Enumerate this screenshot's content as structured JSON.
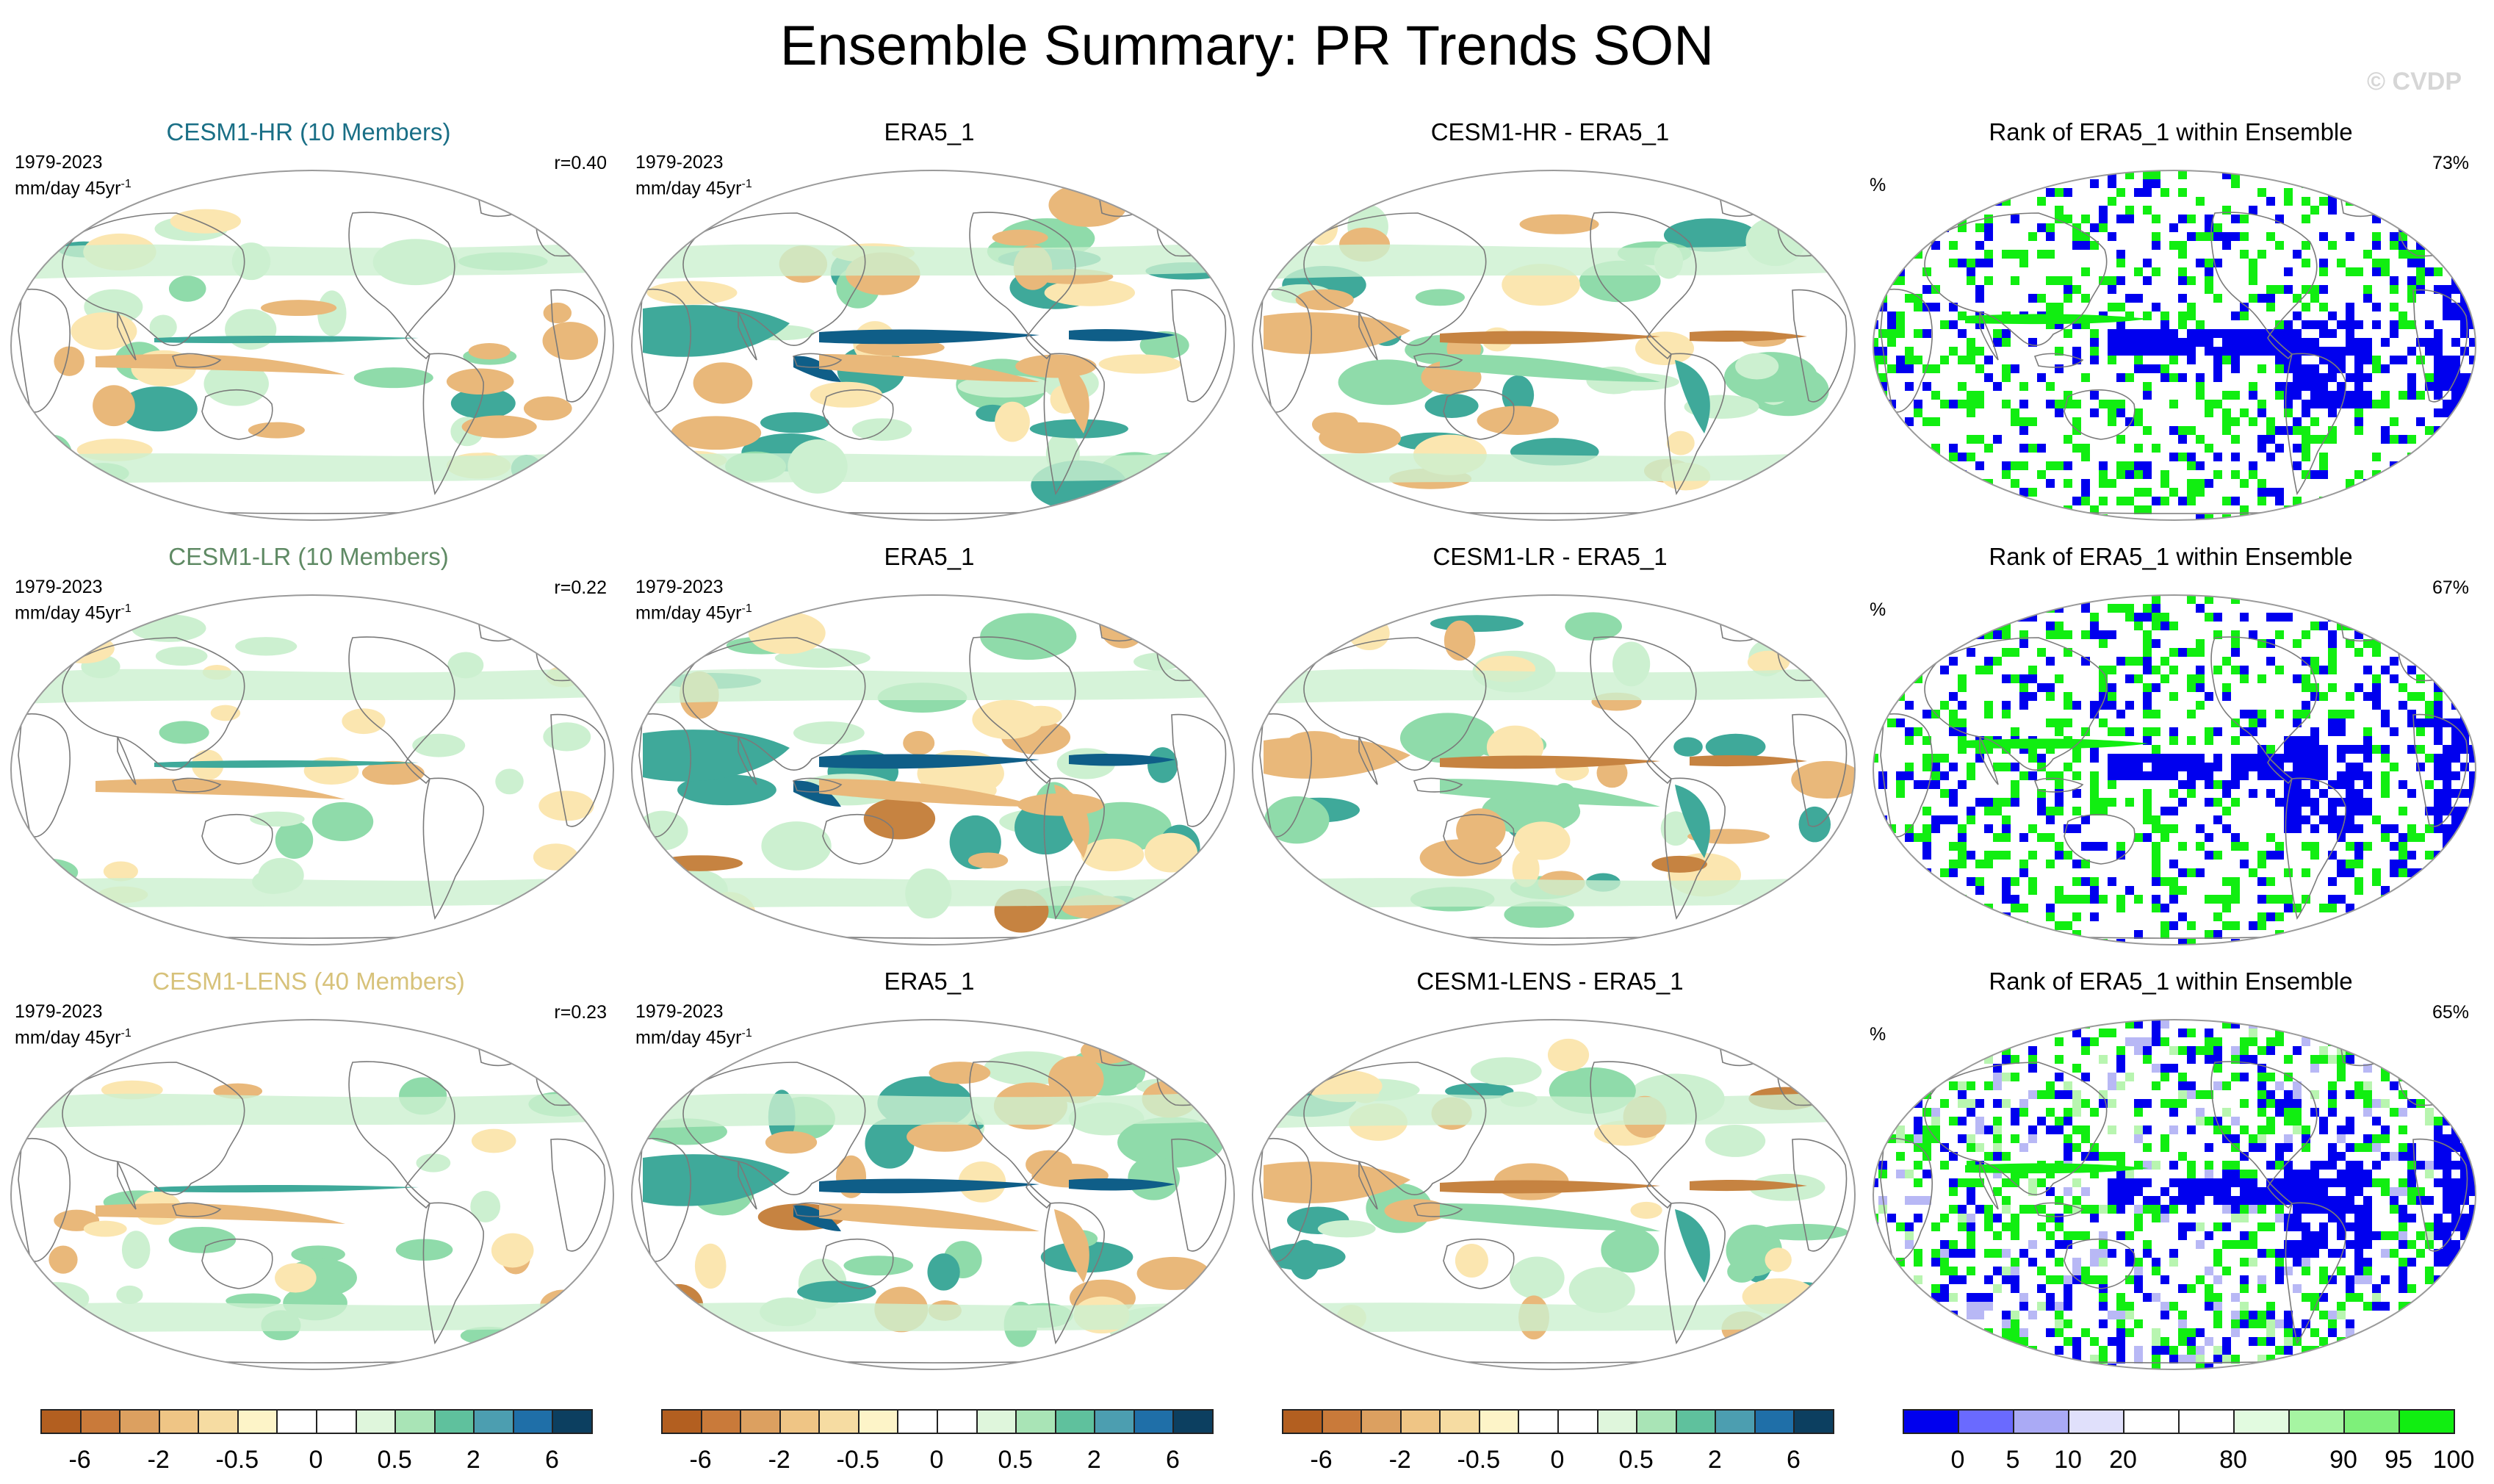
{
  "figure": {
    "title": "Ensemble Summary: PR Trends SON",
    "watermark": "© CVDP"
  },
  "chart_data": [
    {
      "type": "heatmap",
      "title": "CESM1-HR (10 Members)",
      "title_color": "#1a6f86",
      "period": "1979-2023",
      "units": "mm/day 45yr",
      "stat": "r=0.40",
      "projection": "Robinson, Pacific-centered"
    },
    {
      "type": "heatmap",
      "title": "ERA5_1",
      "title_color": "#000000",
      "period": "1979-2023",
      "units": "mm/day 45yr",
      "stat": "",
      "projection": "Robinson, Pacific-centered"
    },
    {
      "type": "heatmap",
      "title": "CESM1-HR - ERA5_1",
      "title_color": "#000000",
      "period": "",
      "units": "",
      "stat": "",
      "projection": "Robinson, Pacific-centered"
    },
    {
      "type": "heatmap",
      "title": "Rank of ERA5_1 within Ensemble",
      "title_color": "#000000",
      "period": "",
      "units": "%",
      "stat": "73%",
      "projection": "Robinson, Pacific-centered"
    },
    {
      "type": "heatmap",
      "title": "CESM1-LR (10 Members)",
      "title_color": "#5f8a64",
      "period": "1979-2023",
      "units": "mm/day 45yr",
      "stat": "r=0.22",
      "projection": "Robinson, Pacific-centered"
    },
    {
      "type": "heatmap",
      "title": "ERA5_1",
      "title_color": "#000000",
      "period": "1979-2023",
      "units": "mm/day 45yr",
      "stat": "",
      "projection": "Robinson, Pacific-centered"
    },
    {
      "type": "heatmap",
      "title": "CESM1-LR - ERA5_1",
      "title_color": "#000000",
      "period": "",
      "units": "",
      "stat": "",
      "projection": "Robinson, Pacific-centered"
    },
    {
      "type": "heatmap",
      "title": "Rank of ERA5_1 within Ensemble",
      "title_color": "#000000",
      "period": "",
      "units": "%",
      "stat": "67%",
      "projection": "Robinson, Pacific-centered"
    },
    {
      "type": "heatmap",
      "title": "CESM1-LENS (40 Members)",
      "title_color": "#d7c27a",
      "period": "1979-2023",
      "units": "mm/day 45yr",
      "stat": "r=0.23",
      "projection": "Robinson, Pacific-centered"
    },
    {
      "type": "heatmap",
      "title": "ERA5_1",
      "title_color": "#000000",
      "period": "1979-2023",
      "units": "mm/day 45yr",
      "stat": "",
      "projection": "Robinson, Pacific-centered"
    },
    {
      "type": "heatmap",
      "title": "CESM1-LENS - ERA5_1",
      "title_color": "#000000",
      "period": "",
      "units": "",
      "stat": "",
      "projection": "Robinson, Pacific-centered"
    },
    {
      "type": "heatmap",
      "title": "Rank of ERA5_1 within Ensemble",
      "title_color": "#000000",
      "period": "",
      "units": "%",
      "stat": "65%",
      "projection": "Robinson, Pacific-centered"
    }
  ],
  "unit_superscript": "-1",
  "colorbars": [
    {
      "kind": "trend",
      "colors": [
        "#b35f20",
        "#c97a3a",
        "#dca060",
        "#efc585",
        "#f6dca2",
        "#fdf4c8",
        "#ffffff",
        "#ffffff",
        "#dff6dc",
        "#a9e4b6",
        "#5fc19d",
        "#4c9eb0",
        "#1f6fa8",
        "#0c3f60"
      ],
      "labels": [
        {
          "text": "-6",
          "at": 1
        },
        {
          "text": "-2",
          "at": 3
        },
        {
          "text": "-0.5",
          "at": 5
        },
        {
          "text": "0",
          "at": 7
        },
        {
          "text": "0.5",
          "at": 9
        },
        {
          "text": "2",
          "at": 11
        },
        {
          "text": "6",
          "at": 13
        }
      ]
    },
    {
      "kind": "trend",
      "colors": [
        "#b35f20",
        "#c97a3a",
        "#dca060",
        "#efc585",
        "#f6dca2",
        "#fdf4c8",
        "#ffffff",
        "#ffffff",
        "#dff6dc",
        "#a9e4b6",
        "#5fc19d",
        "#4c9eb0",
        "#1f6fa8",
        "#0c3f60"
      ],
      "labels": [
        {
          "text": "-6",
          "at": 1
        },
        {
          "text": "-2",
          "at": 3
        },
        {
          "text": "-0.5",
          "at": 5
        },
        {
          "text": "0",
          "at": 7
        },
        {
          "text": "0.5",
          "at": 9
        },
        {
          "text": "2",
          "at": 11
        },
        {
          "text": "6",
          "at": 13
        }
      ]
    },
    {
      "kind": "trend",
      "colors": [
        "#b35f20",
        "#c97a3a",
        "#dca060",
        "#efc585",
        "#f6dca2",
        "#fdf4c8",
        "#ffffff",
        "#ffffff",
        "#dff6dc",
        "#a9e4b6",
        "#5fc19d",
        "#4c9eb0",
        "#1f6fa8",
        "#0c3f60"
      ],
      "labels": [
        {
          "text": "-6",
          "at": 1
        },
        {
          "text": "-2",
          "at": 3
        },
        {
          "text": "-0.5",
          "at": 5
        },
        {
          "text": "0",
          "at": 7
        },
        {
          "text": "0.5",
          "at": 9
        },
        {
          "text": "2",
          "at": 11
        },
        {
          "text": "6",
          "at": 13
        }
      ]
    },
    {
      "kind": "rank",
      "colors": [
        "#0000ee",
        "#6a6aff",
        "#aaaaf5",
        "#e0e0fb",
        "#ffffff",
        "#ffffff",
        "#e2fbe0",
        "#a6f5a2",
        "#7ef07a",
        "#11ee11"
      ],
      "labels": [
        {
          "text": "0",
          "at": 1
        },
        {
          "text": "5",
          "at": 2
        },
        {
          "text": "10",
          "at": 3
        },
        {
          "text": "20",
          "at": 4
        },
        {
          "text": "80",
          "at": 6
        },
        {
          "text": "90",
          "at": 8
        },
        {
          "text": "95",
          "at": 9
        },
        {
          "text": "100",
          "at": 10
        }
      ]
    }
  ],
  "map_colors": {
    "ocean": "#ffffff",
    "coast": "#7a7a7a",
    "border": "#9a9a9a",
    "trend_pos_light": "#ccf0d0",
    "trend_pos_mid": "#8fdbaa",
    "trend_pos_strong": "#3fa99a",
    "trend_pos_max": "#0f5e88",
    "trend_neg_light": "#fbe6b0",
    "trend_neg_mid": "#e9b87a",
    "trend_neg_strong": "#c68341",
    "rank_low": "#0000ee",
    "rank_low_light": "#b8b8f5",
    "rank_high": "#11ee11",
    "rank_high_light": "#b8f5b0"
  }
}
